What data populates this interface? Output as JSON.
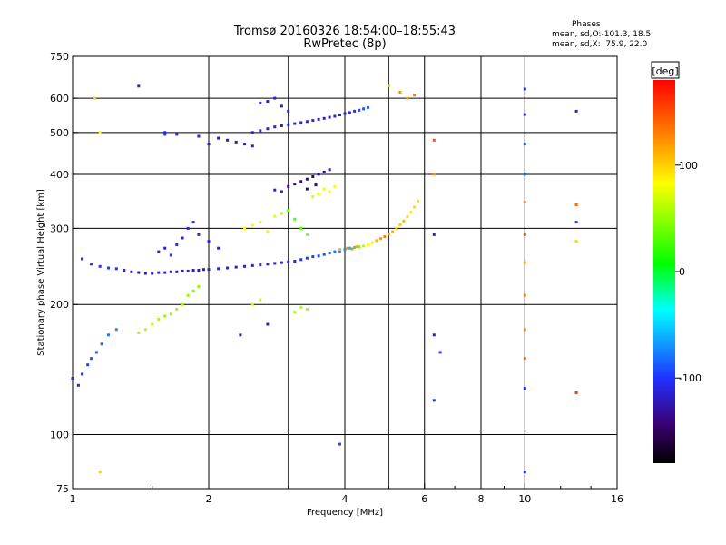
{
  "header": {
    "title_line1": "Tromsø 20160326 18:54:00–18:55:43",
    "title_line2": "RwPretec (8p)",
    "stats_heading": "Phases",
    "stats_o": "mean, sd,O:-101.3, 18.5",
    "stats_x": "mean, sd,X:  75.9, 22.0"
  },
  "colorbar": {
    "unit_label": "[deg]",
    "tick_labels": [
      "100",
      "0",
      "-100"
    ],
    "tick_values": [
      100,
      0,
      -100
    ],
    "range": [
      -180,
      180
    ]
  },
  "chart_data": {
    "type": "scatter",
    "title": "Tromsø 20160326 18:54:00–18:55:43",
    "subtitle": "RwPretec (8p)",
    "xlabel": "Frequency [MHz]",
    "ylabel": "Stationary phase Virtual Height [km]",
    "x_scale": "log",
    "y_scale": "log",
    "xlim": [
      1,
      16
    ],
    "ylim": [
      75,
      750
    ],
    "x_ticks": [
      1,
      2,
      4,
      6,
      8,
      10,
      16
    ],
    "x_tick_labels": [
      "1",
      "2",
      "4",
      "6",
      "8",
      "10",
      "16"
    ],
    "y_ticks": [
      75,
      100,
      200,
      300,
      400,
      500,
      600,
      750
    ],
    "y_tick_labels": [
      "75",
      "100",
      "200",
      "300",
      "400",
      "500",
      "600",
      "750"
    ],
    "grid_x": [
      2,
      3,
      4,
      5,
      6,
      8,
      10
    ],
    "grid_y": [
      100,
      200,
      300,
      400,
      500,
      600
    ],
    "color_encoding": "phase (deg)",
    "series": [
      {
        "points": [
          [
            1.05,
            255,
            -110
          ],
          [
            1.1,
            248,
            -105
          ],
          [
            1.15,
            245,
            -100
          ],
          [
            1.2,
            243,
            -95
          ],
          [
            1.25,
            242,
            -100
          ],
          [
            1.3,
            240,
            -110
          ],
          [
            1.35,
            238,
            -115
          ],
          [
            1.4,
            237,
            -120
          ],
          [
            1.45,
            236,
            -118
          ],
          [
            1.5,
            236,
            -112
          ],
          [
            1.55,
            237,
            -110
          ],
          [
            1.6,
            237,
            -115
          ],
          [
            1.65,
            238,
            -120
          ],
          [
            1.7,
            238,
            -118
          ],
          [
            1.75,
            239,
            -115
          ],
          [
            1.8,
            239,
            -110
          ],
          [
            1.85,
            240,
            -112
          ],
          [
            1.9,
            240,
            -118
          ],
          [
            1.95,
            241,
            -115
          ],
          [
            2.0,
            241,
            -110
          ],
          [
            2.1,
            242,
            -108
          ],
          [
            2.2,
            243,
            -112
          ],
          [
            2.3,
            244,
            -118
          ],
          [
            2.4,
            245,
            -115
          ],
          [
            2.5,
            246,
            -110
          ],
          [
            2.6,
            247,
            -108
          ],
          [
            2.7,
            248,
            -112
          ],
          [
            2.8,
            249,
            -115
          ],
          [
            2.9,
            250,
            -110
          ],
          [
            3.0,
            251,
            -108
          ],
          [
            3.1,
            252,
            -105
          ],
          [
            3.2,
            254,
            -100
          ],
          [
            3.3,
            256,
            -98
          ],
          [
            3.4,
            258,
            -95
          ],
          [
            3.5,
            259,
            -90
          ],
          [
            3.6,
            261,
            -88
          ],
          [
            3.7,
            263,
            -85
          ],
          [
            3.8,
            265,
            -80
          ],
          [
            3.9,
            266,
            -75
          ],
          [
            4.0,
            268,
            -70
          ],
          [
            4.1,
            270,
            -60
          ],
          [
            4.2,
            271,
            -50
          ]
        ]
      },
      {
        "points": [
          [
            4.3,
            272,
            40
          ],
          [
            4.4,
            273,
            60
          ],
          [
            4.5,
            275,
            80
          ],
          [
            4.6,
            278,
            90
          ],
          [
            4.7,
            281,
            110
          ],
          [
            4.8,
            284,
            120
          ],
          [
            4.9,
            287,
            130
          ],
          [
            5.0,
            291,
            120
          ],
          [
            5.1,
            295,
            110
          ],
          [
            5.2,
            300,
            100
          ],
          [
            5.3,
            306,
            105
          ],
          [
            5.4,
            312,
            110
          ],
          [
            5.5,
            319,
            95
          ],
          [
            5.6,
            327,
            90
          ],
          [
            5.7,
            336,
            95
          ],
          [
            5.8,
            347,
            100
          ],
          [
            3.9,
            268,
            110
          ],
          [
            4.05,
            270,
            120
          ],
          [
            4.15,
            269,
            125
          ],
          [
            4.25,
            272,
            115
          ]
        ]
      },
      {
        "points": [
          [
            2.5,
            500,
            -112
          ],
          [
            2.6,
            505,
            -110
          ],
          [
            2.7,
            510,
            -108
          ],
          [
            2.8,
            515,
            -115
          ],
          [
            2.9,
            518,
            -112
          ],
          [
            3.0,
            521,
            -110
          ],
          [
            3.1,
            524,
            -118
          ],
          [
            3.2,
            527,
            -115
          ],
          [
            3.3,
            530,
            -110
          ],
          [
            3.4,
            533,
            -108
          ],
          [
            3.5,
            536,
            -112
          ],
          [
            3.6,
            539,
            -115
          ],
          [
            3.7,
            542,
            -110
          ],
          [
            3.8,
            545,
            -108
          ],
          [
            3.9,
            549,
            -112
          ],
          [
            4.0,
            553,
            -115
          ],
          [
            4.1,
            556,
            -110
          ],
          [
            4.2,
            560,
            -100
          ],
          [
            4.3,
            563,
            -95
          ],
          [
            4.4,
            567,
            -90
          ],
          [
            4.5,
            571,
            -85
          ]
        ]
      },
      {
        "points": [
          [
            3.0,
            375,
            -135
          ],
          [
            3.1,
            380,
            -140
          ],
          [
            3.2,
            385,
            -138
          ],
          [
            3.3,
            390,
            -135
          ],
          [
            3.4,
            395,
            -140
          ],
          [
            3.5,
            400,
            -138
          ],
          [
            3.6,
            405,
            -132
          ],
          [
            3.7,
            410,
            -130
          ],
          [
            3.3,
            370,
            -140
          ],
          [
            3.45,
            378,
            -145
          ],
          [
            2.8,
            368,
            -115
          ],
          [
            2.9,
            365,
            -110
          ]
        ]
      },
      {
        "points": [
          [
            2.2,
            480,
            -120
          ],
          [
            2.3,
            475,
            -118
          ],
          [
            2.4,
            470,
            -115
          ],
          [
            2.5,
            465,
            -112
          ],
          [
            2.1,
            485,
            -118
          ],
          [
            2.0,
            470,
            -110
          ],
          [
            1.9,
            490,
            -112
          ],
          [
            1.7,
            495,
            -108
          ],
          [
            1.6,
            500,
            -112
          ],
          [
            2.7,
            590,
            -115
          ],
          [
            2.8,
            600,
            -110
          ],
          [
            2.6,
            585,
            -108
          ],
          [
            2.9,
            575,
            -112
          ],
          [
            3.0,
            560,
            -105
          ]
        ]
      },
      {
        "points": [
          [
            1.7,
            275,
            -110
          ],
          [
            1.75,
            285,
            -112
          ],
          [
            1.8,
            300,
            -108
          ],
          [
            1.85,
            310,
            -105
          ],
          [
            1.6,
            270,
            -115
          ],
          [
            1.55,
            265,
            -110
          ],
          [
            1.65,
            260,
            -100
          ],
          [
            1.9,
            290,
            -105
          ],
          [
            2.0,
            280,
            -110
          ],
          [
            2.1,
            270,
            -108
          ]
        ]
      },
      {
        "points": [
          [
            2.4,
            300,
            80
          ],
          [
            2.5,
            305,
            85
          ],
          [
            2.6,
            310,
            90
          ],
          [
            2.7,
            295,
            88
          ],
          [
            2.8,
            320,
            75
          ],
          [
            2.9,
            325,
            60
          ],
          [
            3.0,
            330,
            40
          ],
          [
            3.1,
            315,
            30
          ],
          [
            3.2,
            300,
            35
          ],
          [
            3.3,
            290,
            50
          ],
          [
            3.4,
            355,
            70
          ],
          [
            3.5,
            360,
            75
          ],
          [
            3.6,
            370,
            80
          ],
          [
            3.7,
            365,
            85
          ],
          [
            3.8,
            375,
            78
          ]
        ]
      },
      {
        "points": [
          [
            1.5,
            180,
            60
          ],
          [
            1.55,
            185,
            55
          ],
          [
            1.6,
            188,
            50
          ],
          [
            1.65,
            190,
            48
          ],
          [
            1.7,
            195,
            52
          ],
          [
            1.75,
            200,
            55
          ],
          [
            1.8,
            210,
            50
          ],
          [
            1.85,
            215,
            45
          ],
          [
            1.9,
            220,
            48
          ],
          [
            1.45,
            175,
            60
          ],
          [
            1.4,
            172,
            58
          ]
        ]
      },
      {
        "points": [
          [
            1.0,
            135,
            -105
          ],
          [
            1.03,
            130,
            -110
          ],
          [
            1.05,
            138,
            -100
          ],
          [
            1.08,
            145,
            -95
          ],
          [
            1.1,
            150,
            -90
          ],
          [
            1.13,
            155,
            -85
          ],
          [
            1.16,
            162,
            -80
          ],
          [
            1.2,
            170,
            -75
          ],
          [
            1.25,
            175,
            -70
          ]
        ]
      },
      {
        "points": [
          [
            10.0,
            630,
            -110
          ],
          [
            10.0,
            550,
            -115
          ],
          [
            10.0,
            470,
            -90
          ],
          [
            10.0,
            400,
            -80
          ],
          [
            10.0,
            345,
            120
          ],
          [
            10.0,
            290,
            140
          ],
          [
            10.0,
            250,
            110
          ],
          [
            10.0,
            210,
            130
          ],
          [
            10.0,
            175,
            125
          ],
          [
            10.0,
            150,
            135
          ],
          [
            10.0,
            128,
            -105
          ],
          [
            10.0,
            82,
            -110
          ],
          [
            13.0,
            560,
            -115
          ],
          [
            13.0,
            340,
            140
          ],
          [
            13.0,
            310,
            -95
          ],
          [
            13.0,
            280,
            100
          ],
          [
            13.0,
            125,
            160
          ],
          [
            6.3,
            480,
            150
          ],
          [
            6.3,
            400,
            120
          ],
          [
            6.3,
            290,
            -110
          ],
          [
            6.3,
            170,
            -115
          ],
          [
            6.3,
            120,
            -100
          ],
          [
            6.5,
            155,
            -95
          ]
        ]
      },
      {
        "points": [
          [
            1.4,
            640,
            -110
          ],
          [
            1.12,
            600,
            100
          ],
          [
            1.15,
            500,
            80
          ],
          [
            1.6,
            495,
            -100
          ],
          [
            3.9,
            95,
            -90
          ],
          [
            1.15,
            82,
            100
          ],
          [
            5.0,
            640,
            110
          ],
          [
            5.3,
            620,
            125
          ],
          [
            5.5,
            600,
            115
          ],
          [
            5.7,
            610,
            130
          ],
          [
            3.3,
            195,
            55
          ],
          [
            3.2,
            197,
            60
          ],
          [
            3.1,
            192,
            50
          ],
          [
            2.6,
            205,
            60
          ],
          [
            2.5,
            200,
            70
          ],
          [
            2.35,
            170,
            -120
          ],
          [
            2.7,
            180,
            -115
          ]
        ]
      }
    ]
  }
}
